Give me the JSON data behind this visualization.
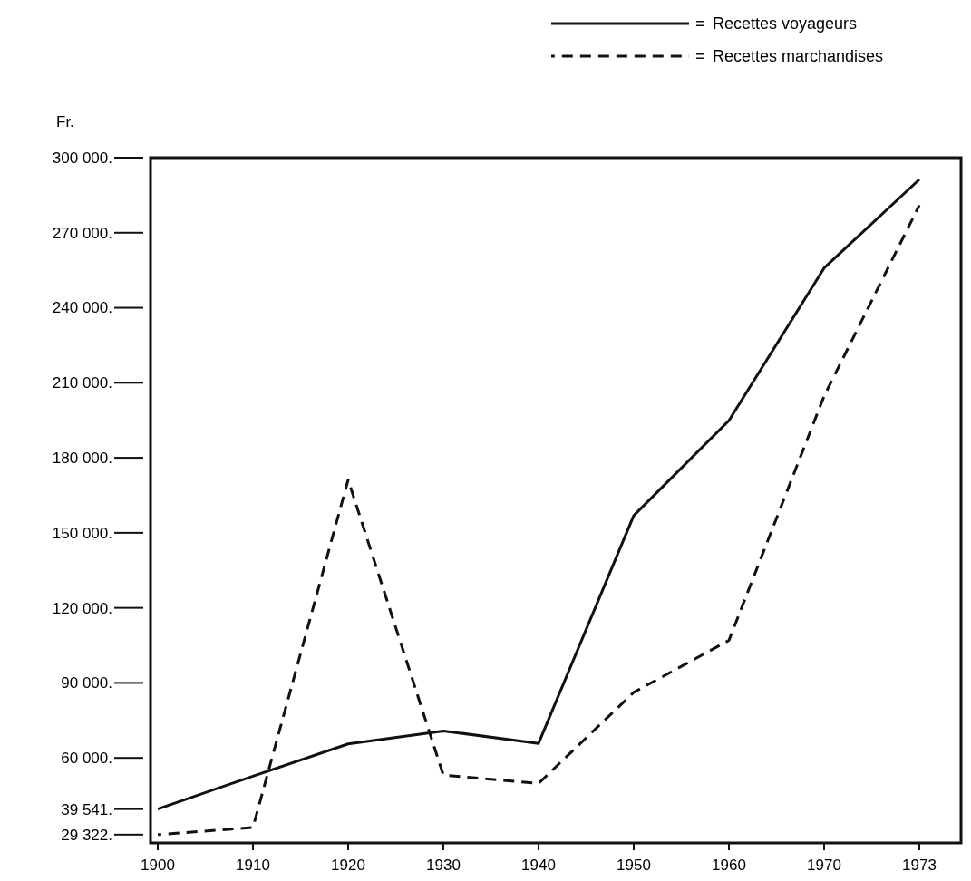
{
  "chart_data": {
    "type": "line",
    "ylabel": "Fr.",
    "categories": [
      "1900",
      "1910",
      "1920",
      "1930",
      "1940",
      "1950",
      "1960",
      "1970",
      "1973"
    ],
    "series": [
      {
        "name": "Recettes voyageurs",
        "color": "#111111",
        "line_style": "solid",
        "values": [
          39541,
          52700,
          65600,
          70800,
          65800,
          156900,
          194900,
          255900,
          291300
        ]
      },
      {
        "name": "Recettes marchandises",
        "color": "#111111",
        "line_style": "dashed",
        "values": [
          29322,
          32200,
          171200,
          53100,
          49800,
          86200,
          107000,
          204700,
          281000
        ]
      }
    ],
    "ylim": [
      26000,
      300000
    ],
    "yticks": [
      {
        "value": 29322,
        "label": "29 322."
      },
      {
        "value": 39541,
        "label": "39 541."
      },
      {
        "value": 60000,
        "label": "60 000."
      },
      {
        "value": 90000,
        "label": "90 000."
      },
      {
        "value": 120000,
        "label": "120 000."
      },
      {
        "value": 150000,
        "label": "150 000."
      },
      {
        "value": 180000,
        "label": "180 000."
      },
      {
        "value": 210000,
        "label": "210 000."
      },
      {
        "value": 240000,
        "label": "240 000."
      },
      {
        "value": 270000,
        "label": "270 000."
      },
      {
        "value": 300000,
        "label": "300 000."
      }
    ],
    "grid": false,
    "legend": "top right",
    "marker": "none"
  }
}
